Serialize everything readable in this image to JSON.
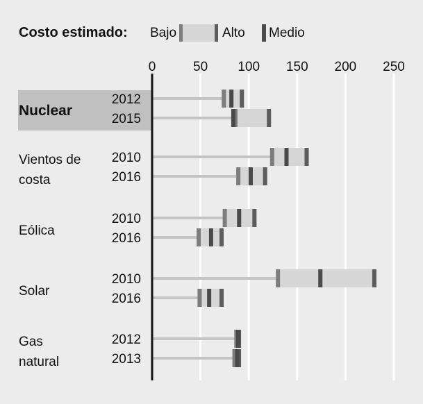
{
  "legend": {
    "title": "Costo estimado:",
    "low": "Bajo",
    "high": "Alto",
    "mid": "Medio"
  },
  "colors": {
    "background": "#ececec",
    "grid": "#ffffff",
    "track": "#c4c4c4",
    "range": "#d6d6d6",
    "low_marker": "#7d7d7d",
    "mid_marker": "#4a4a4a",
    "high_marker": "#5c5c5c",
    "highlight": "#c0c0c0",
    "axis": "#111111"
  },
  "chart_data": {
    "type": "range-bar",
    "xlim": [
      0,
      250
    ],
    "x_ticks": [
      0,
      50,
      100,
      150,
      200,
      250
    ],
    "grid": true,
    "highlighted_group": "Nuclear",
    "groups": [
      {
        "label_lines": [
          "Nuclear"
        ],
        "bold": true,
        "rows": [
          {
            "year": "2012",
            "low": 72,
            "mid": 82,
            "high": 95
          },
          {
            "year": "2015",
            "low": 84,
            "mid": 84,
            "high": 123
          }
        ]
      },
      {
        "label_lines": [
          "Vientos de",
          "costa"
        ],
        "bold": false,
        "rows": [
          {
            "year": "2010",
            "low": 122,
            "mid": 139,
            "high": 162
          },
          {
            "year": "2016",
            "low": 87,
            "mid": 102,
            "high": 119
          }
        ]
      },
      {
        "label_lines": [
          "Eólica"
        ],
        "bold": false,
        "rows": [
          {
            "year": "2010",
            "low": 73,
            "mid": 90,
            "high": 108
          },
          {
            "year": "2016",
            "low": 46,
            "mid": 61,
            "high": 74
          }
        ]
      },
      {
        "label_lines": [
          "Solar"
        ],
        "bold": false,
        "rows": [
          {
            "year": "2010",
            "low": 128,
            "mid": 174,
            "high": 232
          },
          {
            "year": "2016",
            "low": 47,
            "mid": 59,
            "high": 74
          }
        ]
      },
      {
        "label_lines": [
          "Gas",
          "natural"
        ],
        "bold": false,
        "rows": [
          {
            "year": "2012",
            "low": 85,
            "mid": 89,
            "high": 92
          },
          {
            "year": "2013",
            "low": 83,
            "mid": 88,
            "high": 92
          }
        ]
      }
    ]
  }
}
